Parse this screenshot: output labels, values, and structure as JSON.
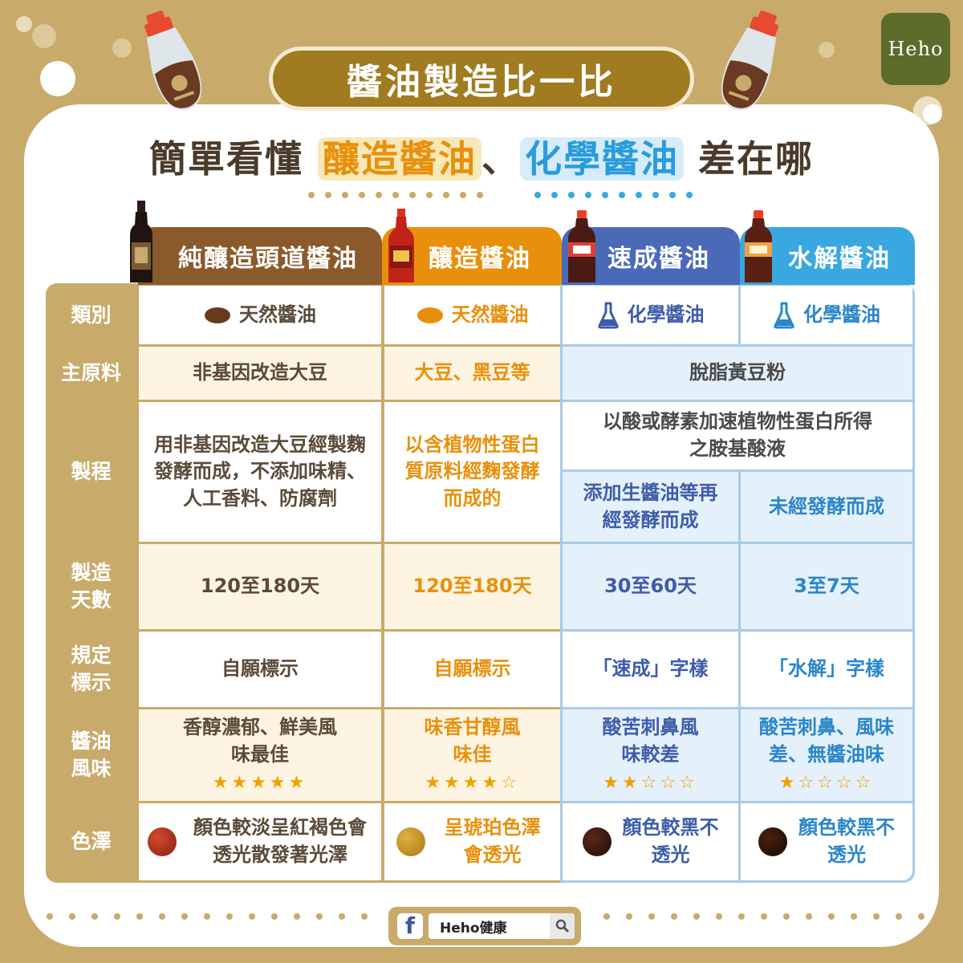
{
  "title": "醬油製造比一比",
  "logo": "Heho",
  "subtitle": {
    "prefix": "簡單看懂",
    "brewed": "釀造醬油",
    "sep": "、",
    "chemical": "化學醬油",
    "suffix": "差在哪"
  },
  "columns": [
    "純釀造頭道醬油",
    "釀造醬油",
    "速成醬油",
    "水解醬油"
  ],
  "rows": {
    "category": {
      "label": "類別",
      "values": [
        "天然醬油",
        "天然醬油",
        "化學醬油",
        "化學醬油"
      ]
    },
    "ingredient": {
      "label": "主原料",
      "values": [
        "非基因改造大豆",
        "大豆、黑豆等",
        "脫脂黃豆粉"
      ]
    },
    "process": {
      "label": "製程",
      "values": [
        "用非基因改造大豆經製麴發酵而成，不添加味精、人工香料、防腐劑",
        "以含植物性蛋白質原料經麴發酵而成的",
        "以酸或酵素加速植物性蛋白所得之胺基酸液",
        "添加生醬油等再經發酵而成",
        "未經發酵而成"
      ]
    },
    "days": {
      "label": "製造天數",
      "values": [
        "120至180天",
        "120至180天",
        "30至60天",
        "3至7天"
      ]
    },
    "labeling": {
      "label": "規定標示",
      "values": [
        "自願標示",
        "自願標示",
        "「速成」字樣",
        "「水解」字樣"
      ]
    },
    "flavor": {
      "label": "醬油風味",
      "values": [
        "香醇濃郁、鮮美風味最佳",
        "味香甘醇風味佳",
        "酸苦刺鼻風味較差",
        "酸苦刺鼻、風味差、無醬油味"
      ],
      "stars": [
        5,
        4,
        2,
        1
      ],
      "star_text": [
        "★★★★★",
        "★★★★☆",
        "★★☆☆☆",
        "★☆☆☆☆"
      ]
    },
    "color": {
      "label": "色澤",
      "values": [
        "顏色較淡呈紅褐色會透光散發著光澤",
        "呈琥珀色澤會透光",
        "顏色較黑不透光",
        "顏色較黑不透光"
      ],
      "swatches": [
        "#9b2a1a",
        "#c8901e",
        "#3a1a10",
        "#2a1008"
      ]
    }
  },
  "footer": {
    "search_text": "Heho健康",
    "facebook_icon": "facebook-icon",
    "search_icon": "search-icon"
  },
  "colors": {
    "gold": "#c8aa6a",
    "brown": "#8b5a2b",
    "orange": "#e8900c",
    "indigo": "#4a6ab8",
    "sky": "#3aa8e0"
  }
}
